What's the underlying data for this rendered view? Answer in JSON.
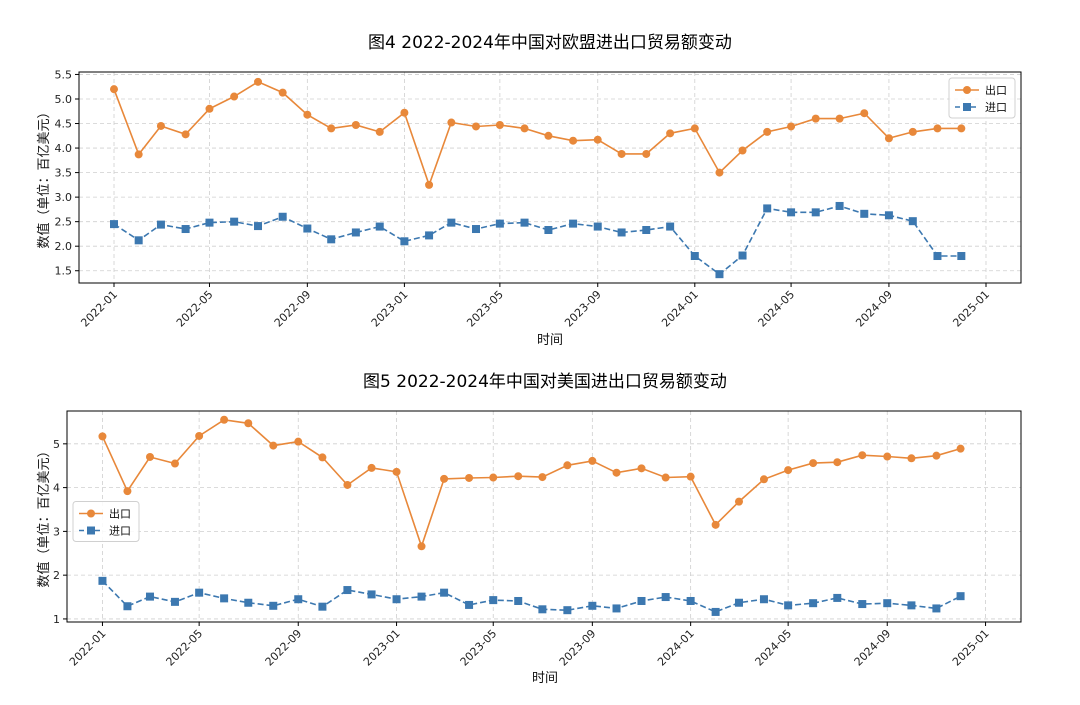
{
  "chart_data": [
    {
      "type": "line",
      "title": "图4   2022-2024年中国对欧盟进出口贸易额变动",
      "xlabel": "时间",
      "ylabel": "数值（单位：百亿美元）",
      "x": [
        "2022-01",
        "2022-02",
        "2022-03",
        "2022-04",
        "2022-05",
        "2022-06",
        "2022-07",
        "2022-08",
        "2022-09",
        "2022-10",
        "2022-11",
        "2022-12",
        "2023-01",
        "2023-02",
        "2023-03",
        "2023-04",
        "2023-05",
        "2023-06",
        "2023-07",
        "2023-08",
        "2023-09",
        "2023-10",
        "2023-11",
        "2023-12",
        "2024-01",
        "2024-02",
        "2024-03",
        "2024-04",
        "2024-05",
        "2024-06",
        "2024-07",
        "2024-08",
        "2024-09",
        "2024-10",
        "2024-11",
        "2024-12"
      ],
      "xticks": [
        "2022-01",
        "2022-05",
        "2022-09",
        "2023-01",
        "2023-05",
        "2023-09",
        "2024-01",
        "2024-05",
        "2024-09",
        "2025-01"
      ],
      "xlim": [
        "2021-11-18",
        "2025-02-14"
      ],
      "ylim": [
        1.25,
        5.55
      ],
      "yticks": [
        1.5,
        2.0,
        2.5,
        3.0,
        3.5,
        4.0,
        4.5,
        5.0,
        5.5
      ],
      "ytick_labels": [
        "1.5",
        "2.0",
        "2.5",
        "3.0",
        "3.5",
        "4.0",
        "4.5",
        "5.0",
        "5.5"
      ],
      "grid": true,
      "legend": "top-right",
      "series": [
        {
          "name": "出口",
          "color": "#E8883A",
          "marker": "circle",
          "dash": "solid",
          "values": [
            5.2,
            3.87,
            4.45,
            4.28,
            4.8,
            5.05,
            5.35,
            5.13,
            4.68,
            4.4,
            4.47,
            4.33,
            4.72,
            3.25,
            4.52,
            4.44,
            4.47,
            4.4,
            4.25,
            4.15,
            4.17,
            3.88,
            3.88,
            4.3,
            4.4,
            3.5,
            3.95,
            4.33,
            4.44,
            4.6,
            4.6,
            4.71,
            4.2,
            4.33,
            4.4,
            4.4
          ]
        },
        {
          "name": "进口",
          "color": "#3C78B0",
          "marker": "square",
          "dash": "dashed",
          "values": [
            2.45,
            2.12,
            2.44,
            2.35,
            2.48,
            2.5,
            2.41,
            2.6,
            2.36,
            2.14,
            2.28,
            2.4,
            2.1,
            2.22,
            2.48,
            2.35,
            2.46,
            2.48,
            2.33,
            2.46,
            2.4,
            2.28,
            2.33,
            2.4,
            1.8,
            1.43,
            1.81,
            2.77,
            2.69,
            2.69,
            2.82,
            2.66,
            2.63,
            2.51,
            1.8,
            1.8
          ]
        }
      ]
    },
    {
      "type": "line",
      "title": "图5   2022-2024年中国对美国进出口贸易额变动",
      "xlabel": "时间",
      "ylabel": "数值（单位：百亿美元）",
      "x": [
        "2022-01",
        "2022-02",
        "2022-03",
        "2022-04",
        "2022-05",
        "2022-06",
        "2022-07",
        "2022-08",
        "2022-09",
        "2022-10",
        "2022-11",
        "2022-12",
        "2023-01",
        "2023-02",
        "2023-03",
        "2023-04",
        "2023-05",
        "2023-06",
        "2023-07",
        "2023-08",
        "2023-09",
        "2023-10",
        "2023-11",
        "2023-12",
        "2024-01",
        "2024-02",
        "2024-03",
        "2024-04",
        "2024-05",
        "2024-06",
        "2024-07",
        "2024-08",
        "2024-09",
        "2024-10",
        "2024-11",
        "2024-12"
      ],
      "xticks": [
        "2022-01",
        "2022-05",
        "2022-09",
        "2023-01",
        "2023-05",
        "2023-09",
        "2024-01",
        "2024-05",
        "2024-09",
        "2025-01"
      ],
      "xlim": [
        "2021-11-18",
        "2025-02-14"
      ],
      "ylim": [
        0.93,
        5.75
      ],
      "yticks": [
        1,
        2,
        3,
        4,
        5
      ],
      "ytick_labels": [
        "1",
        "2",
        "3",
        "4",
        "5"
      ],
      "grid": true,
      "legend": "center-left",
      "series": [
        {
          "name": "出口",
          "color": "#E8883A",
          "marker": "circle",
          "dash": "solid",
          "values": [
            5.17,
            3.92,
            4.7,
            4.55,
            5.18,
            5.55,
            5.47,
            4.96,
            5.05,
            4.69,
            4.06,
            4.45,
            4.36,
            2.66,
            4.2,
            4.22,
            4.23,
            4.26,
            4.24,
            4.51,
            4.61,
            4.34,
            4.44,
            4.23,
            4.25,
            3.15,
            3.68,
            4.19,
            4.4,
            4.56,
            4.58,
            4.74,
            4.71,
            4.67,
            4.73,
            4.89
          ]
        },
        {
          "name": "进口",
          "color": "#3C78B0",
          "marker": "square",
          "dash": "dashed",
          "values": [
            1.87,
            1.29,
            1.51,
            1.39,
            1.6,
            1.47,
            1.37,
            1.3,
            1.45,
            1.28,
            1.66,
            1.56,
            1.45,
            1.51,
            1.6,
            1.32,
            1.43,
            1.41,
            1.22,
            1.2,
            1.3,
            1.24,
            1.41,
            1.5,
            1.41,
            1.16,
            1.37,
            1.45,
            1.31,
            1.36,
            1.48,
            1.34,
            1.36,
            1.31,
            1.24,
            1.52
          ]
        }
      ]
    }
  ]
}
